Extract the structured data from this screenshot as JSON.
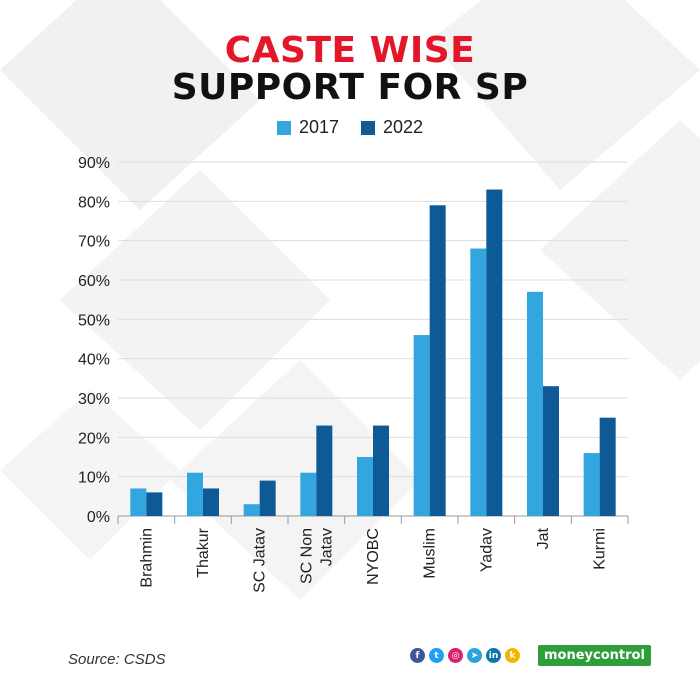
{
  "title": {
    "line1": "CASTE WISE",
    "line2": "SUPPORT FOR SP"
  },
  "legend": [
    {
      "label": "2017",
      "color": "#33a6e0"
    },
    {
      "label": "2022",
      "color": "#0d5a97"
    }
  ],
  "chart_data": {
    "type": "bar",
    "title": "CASTE WISE SUPPORT FOR SP",
    "categories": [
      "Brahmin",
      "Thakur",
      "SC Jatav",
      "SC Non Jatav",
      "NYOBC",
      "Muslim",
      "Yadav",
      "Jat",
      "Kurmi"
    ],
    "series": [
      {
        "name": "2017",
        "color": "#33a6e0",
        "values": [
          7,
          11,
          3,
          11,
          15,
          46,
          68,
          57,
          16
        ]
      },
      {
        "name": "2022",
        "color": "#0d5a97",
        "values": [
          6,
          7,
          9,
          23,
          23,
          79,
          83,
          33,
          25
        ]
      }
    ],
    "ylim": [
      0,
      90
    ],
    "yticks": [
      "0%",
      "10%",
      "20%",
      "30%",
      "40%",
      "50%",
      "60%",
      "70%",
      "80%",
      "90%"
    ],
    "xlabel": "",
    "ylabel": "",
    "grid": true,
    "legend_position": "top-center"
  },
  "footer": {
    "source": "Source: CSDS",
    "brand": "moneycontrol",
    "social_icons": [
      {
        "name": "facebook-icon",
        "glyph": "f",
        "color": "#3b5998"
      },
      {
        "name": "twitter-icon",
        "glyph": "t",
        "color": "#1da1f2"
      },
      {
        "name": "instagram-icon",
        "glyph": "◎",
        "color": "#d6246e"
      },
      {
        "name": "telegram-icon",
        "glyph": "➤",
        "color": "#2aa3df"
      },
      {
        "name": "linkedin-icon",
        "glyph": "in",
        "color": "#0e76a8"
      },
      {
        "name": "koo-icon",
        "glyph": "k",
        "color": "#f5b400"
      }
    ]
  }
}
